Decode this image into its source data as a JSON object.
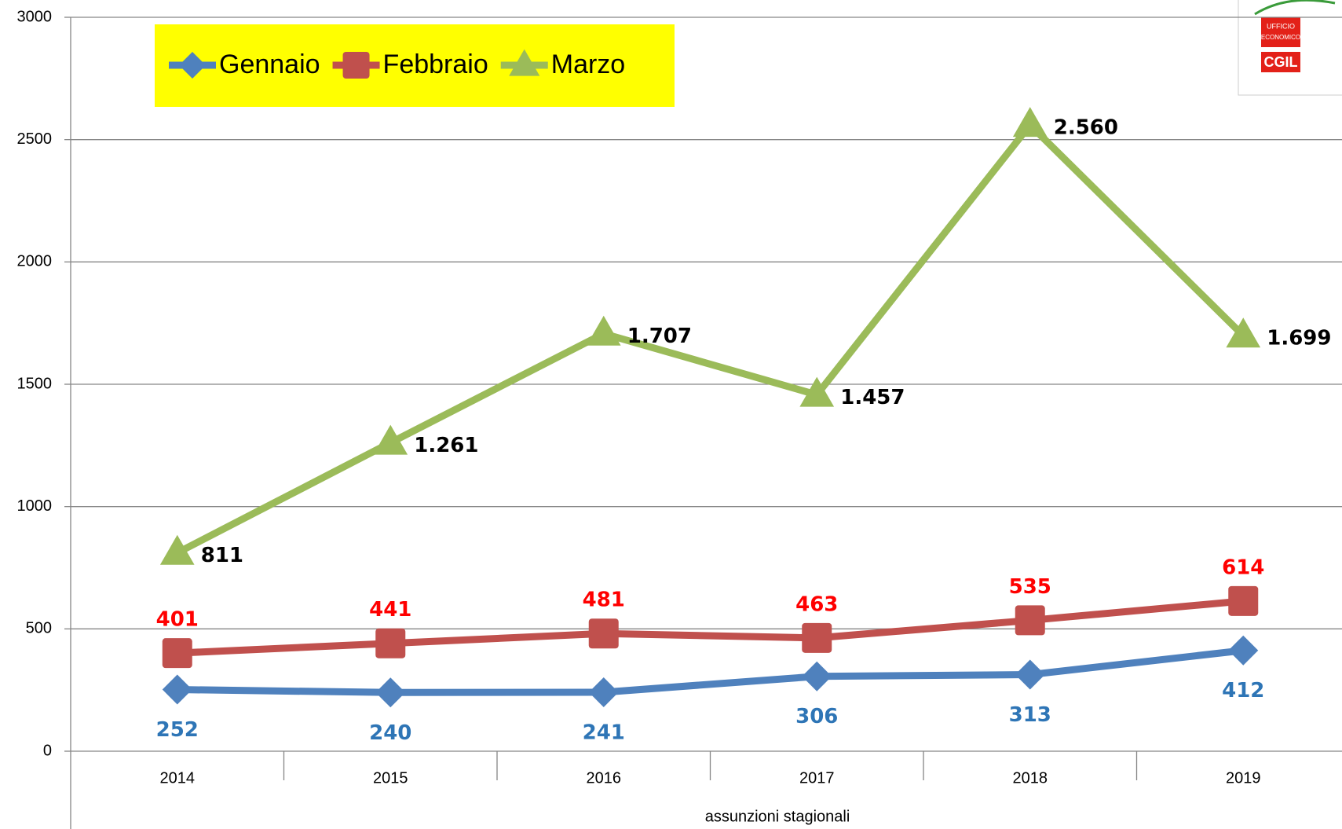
{
  "chart_data": {
    "type": "line",
    "x_label": "assunzioni stagionali",
    "categories": [
      "2014",
      "2015",
      "2016",
      "2017",
      "2018",
      "2019"
    ],
    "series": [
      {
        "name": "Gennaio",
        "color": "#4f81bd",
        "label_color": "#2e75b6",
        "marker": "diamond",
        "values": [
          252,
          240,
          241,
          306,
          313,
          412
        ]
      },
      {
        "name": "Febbraio",
        "color": "#c0504d",
        "label_color": "#ff0000",
        "marker": "square",
        "values": [
          401,
          441,
          481,
          463,
          535,
          614
        ]
      },
      {
        "name": "Marzo",
        "color": "#9bbb59",
        "label_color": "#000000",
        "marker": "triangle",
        "values": [
          811,
          1261,
          1707,
          1457,
          2560,
          1699
        ],
        "value_labels": [
          "811",
          "1.261",
          "1.707",
          "1.457",
          "2.560",
          "1.699"
        ]
      }
    ],
    "ylim": [
      0,
      3000
    ],
    "yticks": [
      0,
      500,
      1000,
      1500,
      2000,
      2500,
      3000
    ],
    "grid": true,
    "legend": "top-left",
    "legend_background": "#ffff00"
  },
  "logo": {
    "line1": "UFFICIO",
    "line2": "ECONOMICO",
    "line3": "CGIL"
  }
}
